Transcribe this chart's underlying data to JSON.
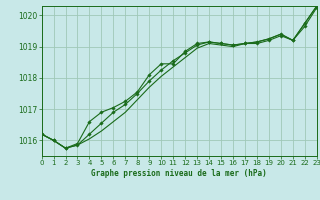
{
  "title": "Graphe pression niveau de la mer (hPa)",
  "bg_color": "#c8e8e8",
  "grid_color": "#a0c8b8",
  "line_color": "#1a6b1a",
  "spine_color": "#1a6b1a",
  "x_values": [
    0,
    1,
    2,
    3,
    4,
    5,
    6,
    7,
    8,
    9,
    10,
    11,
    12,
    13,
    14,
    15,
    16,
    17,
    18,
    19,
    20,
    21,
    22,
    23
  ],
  "line1": [
    1016.2,
    1016.0,
    1015.75,
    1015.9,
    1016.6,
    1016.9,
    1017.05,
    1017.25,
    1017.55,
    1018.1,
    1018.45,
    1018.45,
    1018.85,
    1019.1,
    1019.15,
    1019.1,
    1019.05,
    1019.1,
    1019.1,
    1019.2,
    1019.35,
    1019.2,
    1019.65,
    1020.25
  ],
  "line2": [
    1016.2,
    1016.0,
    1015.75,
    1015.85,
    1016.2,
    1016.55,
    1016.9,
    1017.15,
    1017.5,
    1017.9,
    1018.25,
    1018.55,
    1018.8,
    1019.05,
    1019.15,
    1019.1,
    1019.05,
    1019.1,
    1019.15,
    1019.25,
    1019.4,
    1019.2,
    1019.75,
    1020.3
  ],
  "line3": [
    1016.2,
    1016.0,
    1015.75,
    1015.85,
    1016.05,
    1016.3,
    1016.6,
    1016.9,
    1017.3,
    1017.7,
    1018.05,
    1018.35,
    1018.65,
    1018.95,
    1019.1,
    1019.05,
    1019.0,
    1019.1,
    1019.15,
    1019.25,
    1019.4,
    1019.2,
    1019.75,
    1020.3
  ],
  "ylim": [
    1015.5,
    1020.3
  ],
  "yticks": [
    1016,
    1017,
    1018,
    1019,
    1020
  ],
  "xlim": [
    0,
    23
  ],
  "xticks": [
    0,
    1,
    2,
    3,
    4,
    5,
    6,
    7,
    8,
    9,
    10,
    11,
    12,
    13,
    14,
    15,
    16,
    17,
    18,
    19,
    20,
    21,
    22,
    23
  ]
}
